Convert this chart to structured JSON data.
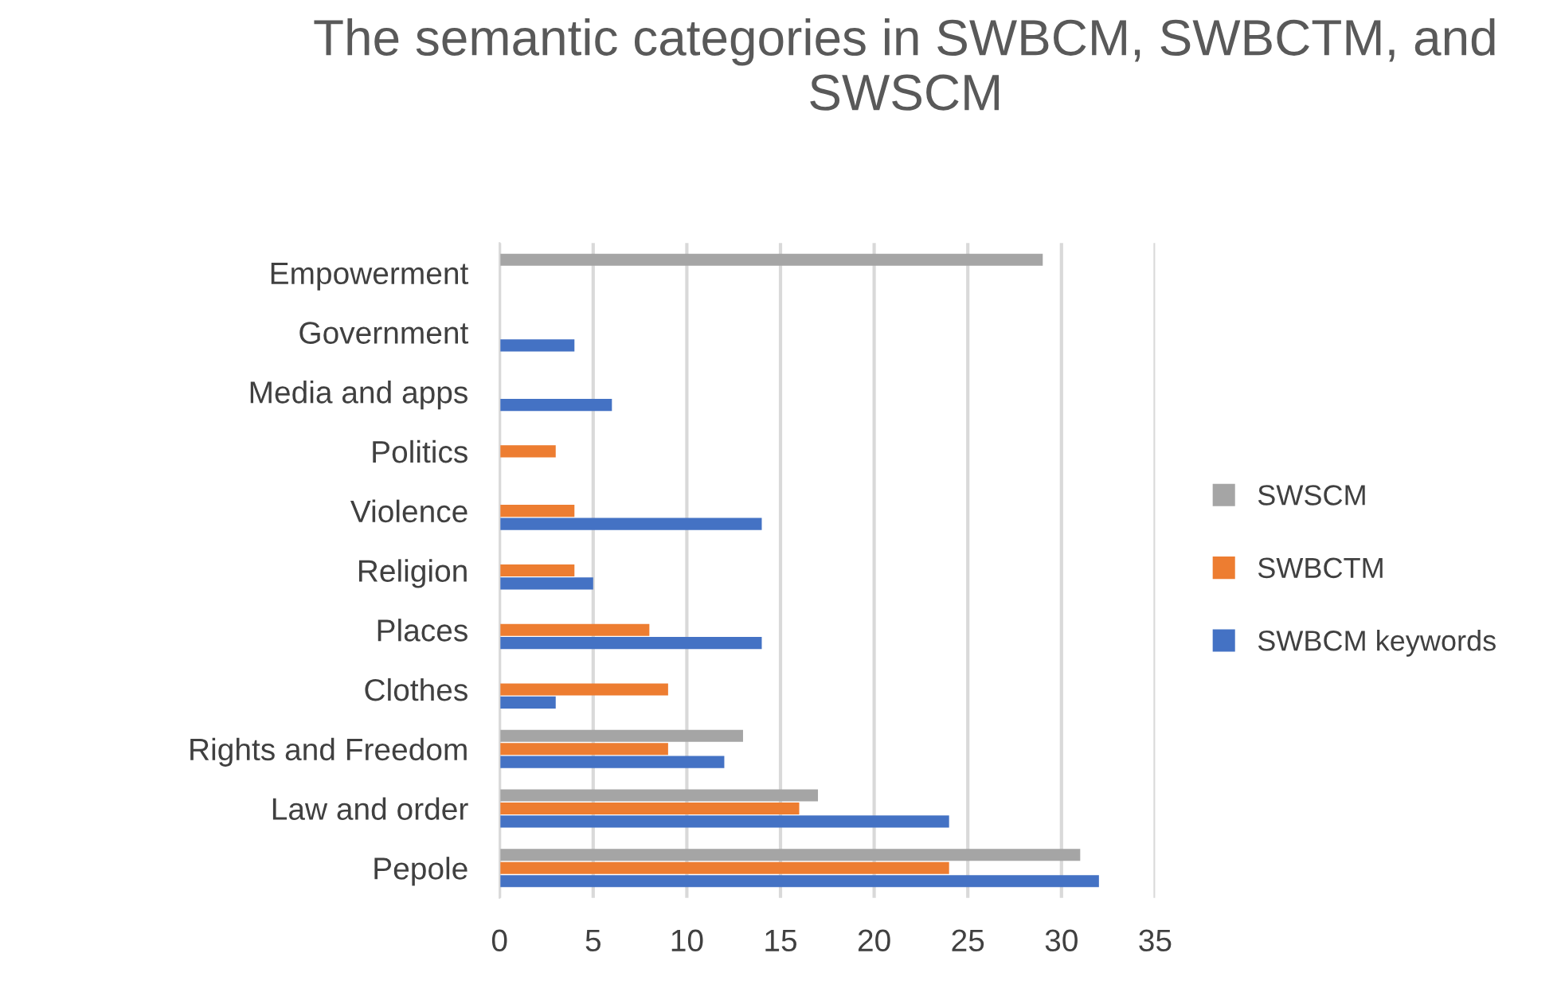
{
  "chart_data": {
    "type": "bar",
    "orientation": "horizontal",
    "title": "The semantic categories in SWBCM, SWBCTM, and SWSCM",
    "categories": [
      "Empowerment",
      "Government",
      "Media and apps",
      "Politics",
      "Violence",
      "Religion",
      "Places",
      "Clothes",
      "Rights and Freedom",
      "Law and order",
      "Pepole"
    ],
    "series": [
      {
        "name": "SWBCM keywords",
        "color": "#4472c4",
        "values": [
          null,
          4,
          6,
          null,
          14,
          5,
          14,
          3,
          12,
          24,
          32
        ]
      },
      {
        "name": "SWBCTM",
        "color": "#ed7d31",
        "values": [
          null,
          null,
          null,
          3,
          4,
          4,
          8,
          9,
          9,
          16,
          24
        ]
      },
      {
        "name": "SWSCM",
        "color": "#a5a5a5",
        "values": [
          29,
          null,
          null,
          null,
          null,
          null,
          null,
          null,
          13,
          17,
          31
        ]
      }
    ],
    "xlim": [
      0,
      35
    ],
    "xticks": [
      0,
      5,
      10,
      15,
      20,
      25,
      30,
      35
    ],
    "grid": "x",
    "legend": "right"
  }
}
